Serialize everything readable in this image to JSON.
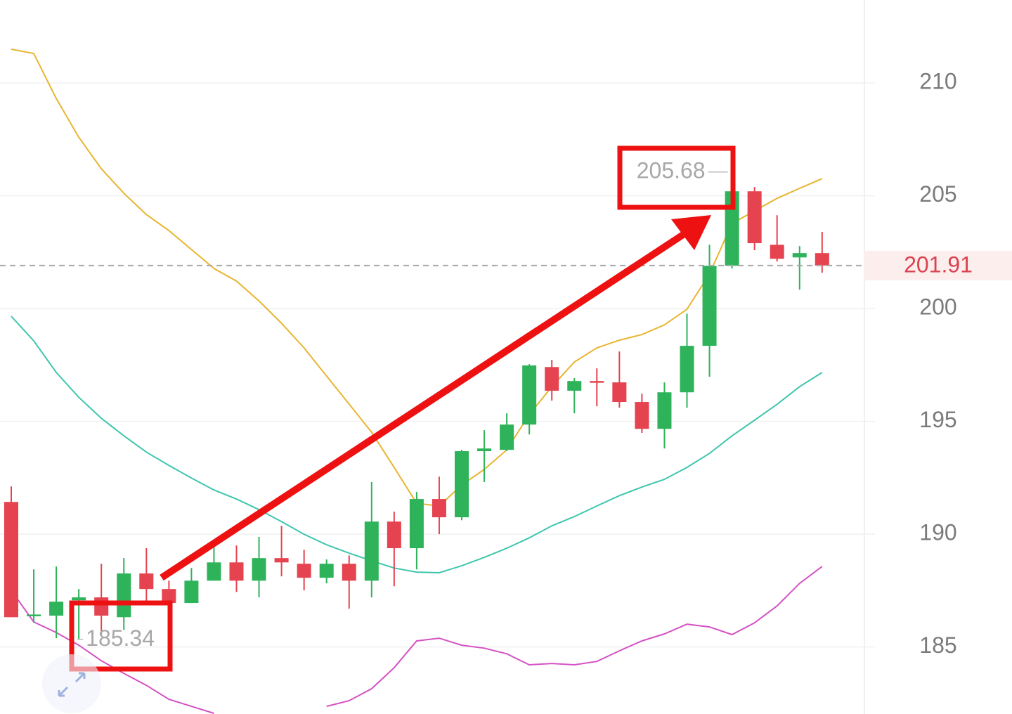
{
  "chart_data": {
    "type": "candlestick",
    "categories": [
      null,
      null,
      null,
      null,
      null,
      null,
      null,
      null,
      null,
      null,
      null,
      null,
      null,
      null,
      null,
      null,
      null,
      null,
      null,
      null,
      null,
      null,
      null,
      null,
      null,
      null,
      null,
      null,
      null,
      null,
      null,
      null,
      null,
      null,
      null,
      null,
      null
    ],
    "open": [
      191.43,
      186.38,
      186.39,
      187.07,
      187.2,
      186.32,
      188.26,
      187.57,
      186.95,
      187.94,
      188.75,
      187.94,
      188.94,
      188.69,
      188.07,
      188.69,
      187.94,
      190.56,
      189.38,
      191.56,
      190.75,
      193.68,
      193.74,
      194.86,
      197.41,
      196.36,
      196.79,
      196.73,
      195.86,
      194.67,
      196.29,
      198.35,
      201.9,
      205.2,
      202.83,
      202.27,
      202.46
    ],
    "high": [
      192.12,
      188.44,
      188.57,
      187.57,
      188.69,
      188.94,
      189.38,
      187.94,
      188.5,
      189.5,
      189.5,
      189.88,
      190.37,
      189.31,
      188.88,
      189.06,
      192.31,
      191.0,
      191.87,
      192.55,
      193.74,
      194.61,
      195.36,
      197.54,
      197.73,
      196.92,
      197.35,
      198.1,
      196.23,
      196.73,
      199.78,
      202.83,
      205.68,
      205.39,
      204.14,
      202.77,
      203.4
    ],
    "low": [
      186.32,
      186.07,
      185.39,
      185.34,
      185.55,
      185.76,
      187.04,
      186.82,
      186.95,
      187.94,
      187.44,
      187.2,
      188.13,
      187.51,
      187.82,
      186.7,
      187.2,
      187.69,
      188.44,
      190.0,
      190.62,
      192.31,
      193.68,
      194.42,
      195.92,
      195.36,
      195.67,
      195.61,
      194.49,
      193.8,
      195.61,
      196.98,
      201.78,
      202.59,
      202.09,
      200.84,
      201.59
    ],
    "close": [
      186.32,
      186.44,
      187.01,
      187.2,
      186.39,
      188.26,
      187.57,
      186.95,
      187.94,
      188.75,
      187.94,
      188.94,
      188.75,
      188.07,
      188.69,
      187.94,
      190.56,
      189.38,
      191.56,
      190.75,
      193.68,
      193.8,
      194.86,
      197.48,
      196.36,
      196.79,
      196.76,
      195.86,
      194.67,
      196.29,
      198.35,
      201.9,
      205.2,
      202.9,
      202.21,
      202.46,
      201.91
    ],
    "up_color": "#2eb35a",
    "down_color": "#e5434f",
    "lines": [
      {
        "color": "#e8b530",
        "values": [
          211.5,
          211.31,
          209.31,
          207.6,
          206.2,
          205.11,
          204.17,
          203.46,
          202.62,
          201.78,
          201.22,
          200.34,
          199.35,
          198.26,
          197.01,
          195.77,
          194.52,
          192.96,
          191.37,
          191.25,
          192.18,
          192.87,
          193.74,
          195.3,
          196.54,
          197.63,
          198.26,
          198.6,
          198.85,
          199.28,
          199.97,
          201.53,
          203.77,
          204.33,
          204.89,
          205.33,
          205.76
        ]
      },
      {
        "color": "#3fc6ad",
        "values": [
          199.66,
          198.57,
          197.17,
          196.07,
          195.14,
          194.36,
          193.64,
          193.05,
          192.49,
          191.96,
          191.56,
          191.09,
          190.56,
          190.0,
          189.53,
          189.16,
          188.82,
          188.5,
          188.32,
          188.29,
          188.6,
          188.97,
          189.38,
          189.84,
          190.37,
          190.78,
          191.25,
          191.71,
          192.09,
          192.43,
          192.96,
          193.58,
          194.36,
          195.05,
          195.76,
          196.54,
          197.17
        ]
      },
      {
        "color": "#d452c4",
        "values": [
          187.51,
          186.11,
          185.64,
          185.08,
          184.39,
          183.83,
          183.3,
          182.68,
          182.37,
          182.06,
          null,
          null,
          null,
          null,
          182.37,
          182.62,
          183.15,
          184.08,
          185.27,
          185.39,
          185.08,
          184.95,
          184.7,
          184.21,
          184.27,
          184.21,
          184.36,
          184.83,
          185.27,
          185.58,
          186.01,
          185.89,
          185.55,
          186.07,
          186.82,
          187.82,
          188.57
        ]
      }
    ],
    "ylim": [
      182.03,
      213.68
    ],
    "yticks": [
      185,
      190,
      195,
      200,
      205,
      210
    ],
    "grid": true
  }
}
